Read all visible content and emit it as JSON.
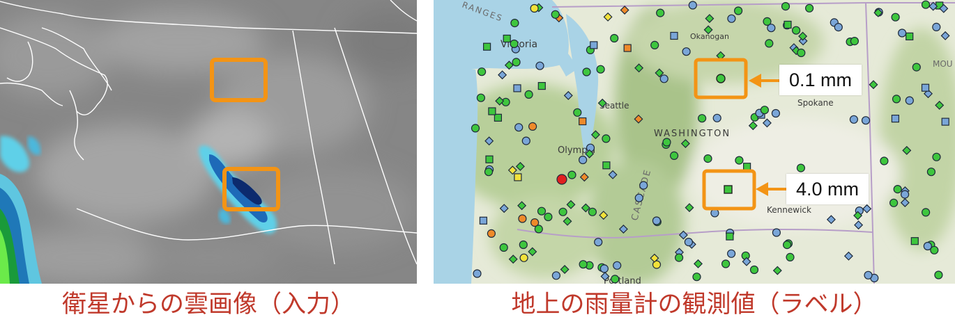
{
  "captions": {
    "left": "衛星からの雲画像（入力）",
    "right": "地上の雨量計の観測値（ラベル）"
  },
  "map_labels": {
    "victoria": "Victoria",
    "seattle": "Seattle",
    "olympia": "Olympia",
    "washington": "WASHINGTON",
    "okanogan": "Okanogan",
    "spokane": "Spokane",
    "kennewick": "Kennewick",
    "portland": "Portland",
    "cascade": "CASCADE",
    "ranges": "RANGES",
    "mou": "MOU"
  },
  "gauge_callouts": [
    {
      "value": "0.1 mm"
    },
    {
      "value": "4.0 mm"
    }
  ],
  "colors": {
    "highlight_box": "#f39415",
    "caption": "#c0392b",
    "gauge_green": "#3ec63e",
    "gauge_blue": "#7aa6d8",
    "gauge_yellow": "#f2e23a",
    "gauge_orange": "#ee8a2a",
    "gauge_red": "#e02020"
  }
}
